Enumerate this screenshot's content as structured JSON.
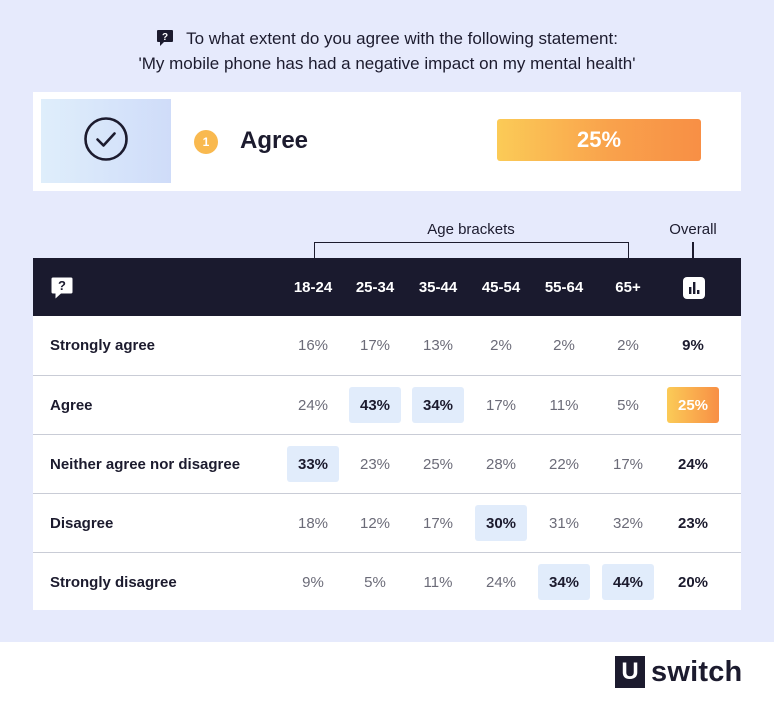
{
  "question": {
    "line1": "To what extent do you agree with the following statement:",
    "line2": "'My mobile phone has had a negative impact on my mental health'",
    "icon": "question-bubble-icon"
  },
  "highlight": {
    "icon": "check-circle-icon",
    "rank": "1",
    "label": "Agree",
    "value_label": "25%",
    "value": 25
  },
  "headers": {
    "group_label": "Age brackets",
    "overall_label": "Overall",
    "question_icon": "question-bubble-icon",
    "overall_icon": "bar-chart-icon"
  },
  "colors": {
    "dark": "#1a1a2e",
    "panel": "#e6eafc",
    "highlight_cell": "#e1ecfb",
    "accent_start": "#fbcb57",
    "accent_end": "#f88f45"
  },
  "chart_data": {
    "type": "table",
    "columns": [
      "18-24",
      "25-34",
      "35-44",
      "45-54",
      "55-64",
      "65+"
    ],
    "overall_column": "Overall",
    "rows": [
      {
        "label": "Strongly agree",
        "values": [
          "16%",
          "17%",
          "13%",
          "2%",
          "2%",
          "2%"
        ],
        "overall": "9%",
        "highlight": []
      },
      {
        "label": "Agree",
        "values": [
          "24%",
          "43%",
          "34%",
          "17%",
          "11%",
          "5%"
        ],
        "overall": "25%",
        "highlight": [
          1,
          2
        ],
        "overall_highlight": true
      },
      {
        "label": "Neither agree nor disagree",
        "values": [
          "33%",
          "23%",
          "25%",
          "28%",
          "22%",
          "17%"
        ],
        "overall": "24%",
        "highlight": [
          0
        ]
      },
      {
        "label": "Disagree",
        "values": [
          "18%",
          "12%",
          "17%",
          "30%",
          "31%",
          "32%"
        ],
        "overall": "23%",
        "highlight": [
          3
        ]
      },
      {
        "label": "Strongly disagree",
        "values": [
          "9%",
          "5%",
          "11%",
          "24%",
          "34%",
          "44%"
        ],
        "overall": "20%",
        "highlight": [
          4,
          5
        ]
      }
    ]
  },
  "brand": {
    "mark": "U",
    "name": "switch"
  }
}
